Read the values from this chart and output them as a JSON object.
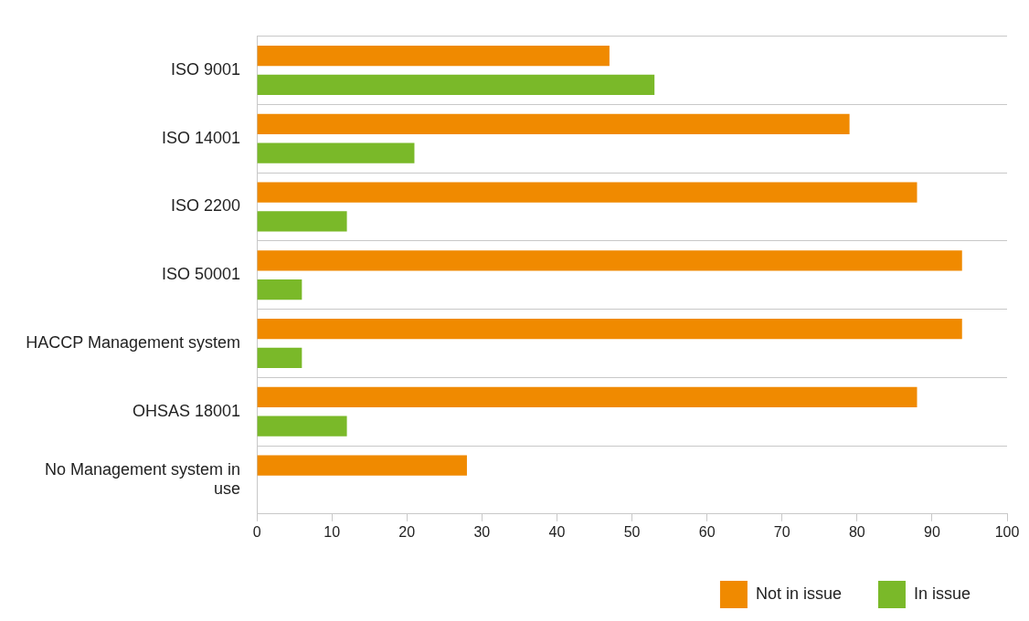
{
  "chart_data": {
    "type": "bar",
    "orientation": "horizontal",
    "categories": [
      "ISO 9001",
      "ISO 14001",
      "ISO 2200",
      "ISO 50001",
      "HACCP Management system",
      "OHSAS 18001",
      "No Management system in use"
    ],
    "series": [
      {
        "name": "Not in issue",
        "color": "#f08a00",
        "values": [
          47,
          79,
          88,
          94,
          94,
          88,
          28
        ]
      },
      {
        "name": "In issue",
        "color": "#7ab929",
        "values": [
          53,
          21,
          12,
          6,
          6,
          12,
          0
        ]
      }
    ],
    "xlim": [
      0,
      100
    ],
    "xticks": [
      0,
      10,
      20,
      30,
      40,
      50,
      60,
      70,
      80,
      90,
      100
    ],
    "grid": "y",
    "legend": "bottom right"
  }
}
